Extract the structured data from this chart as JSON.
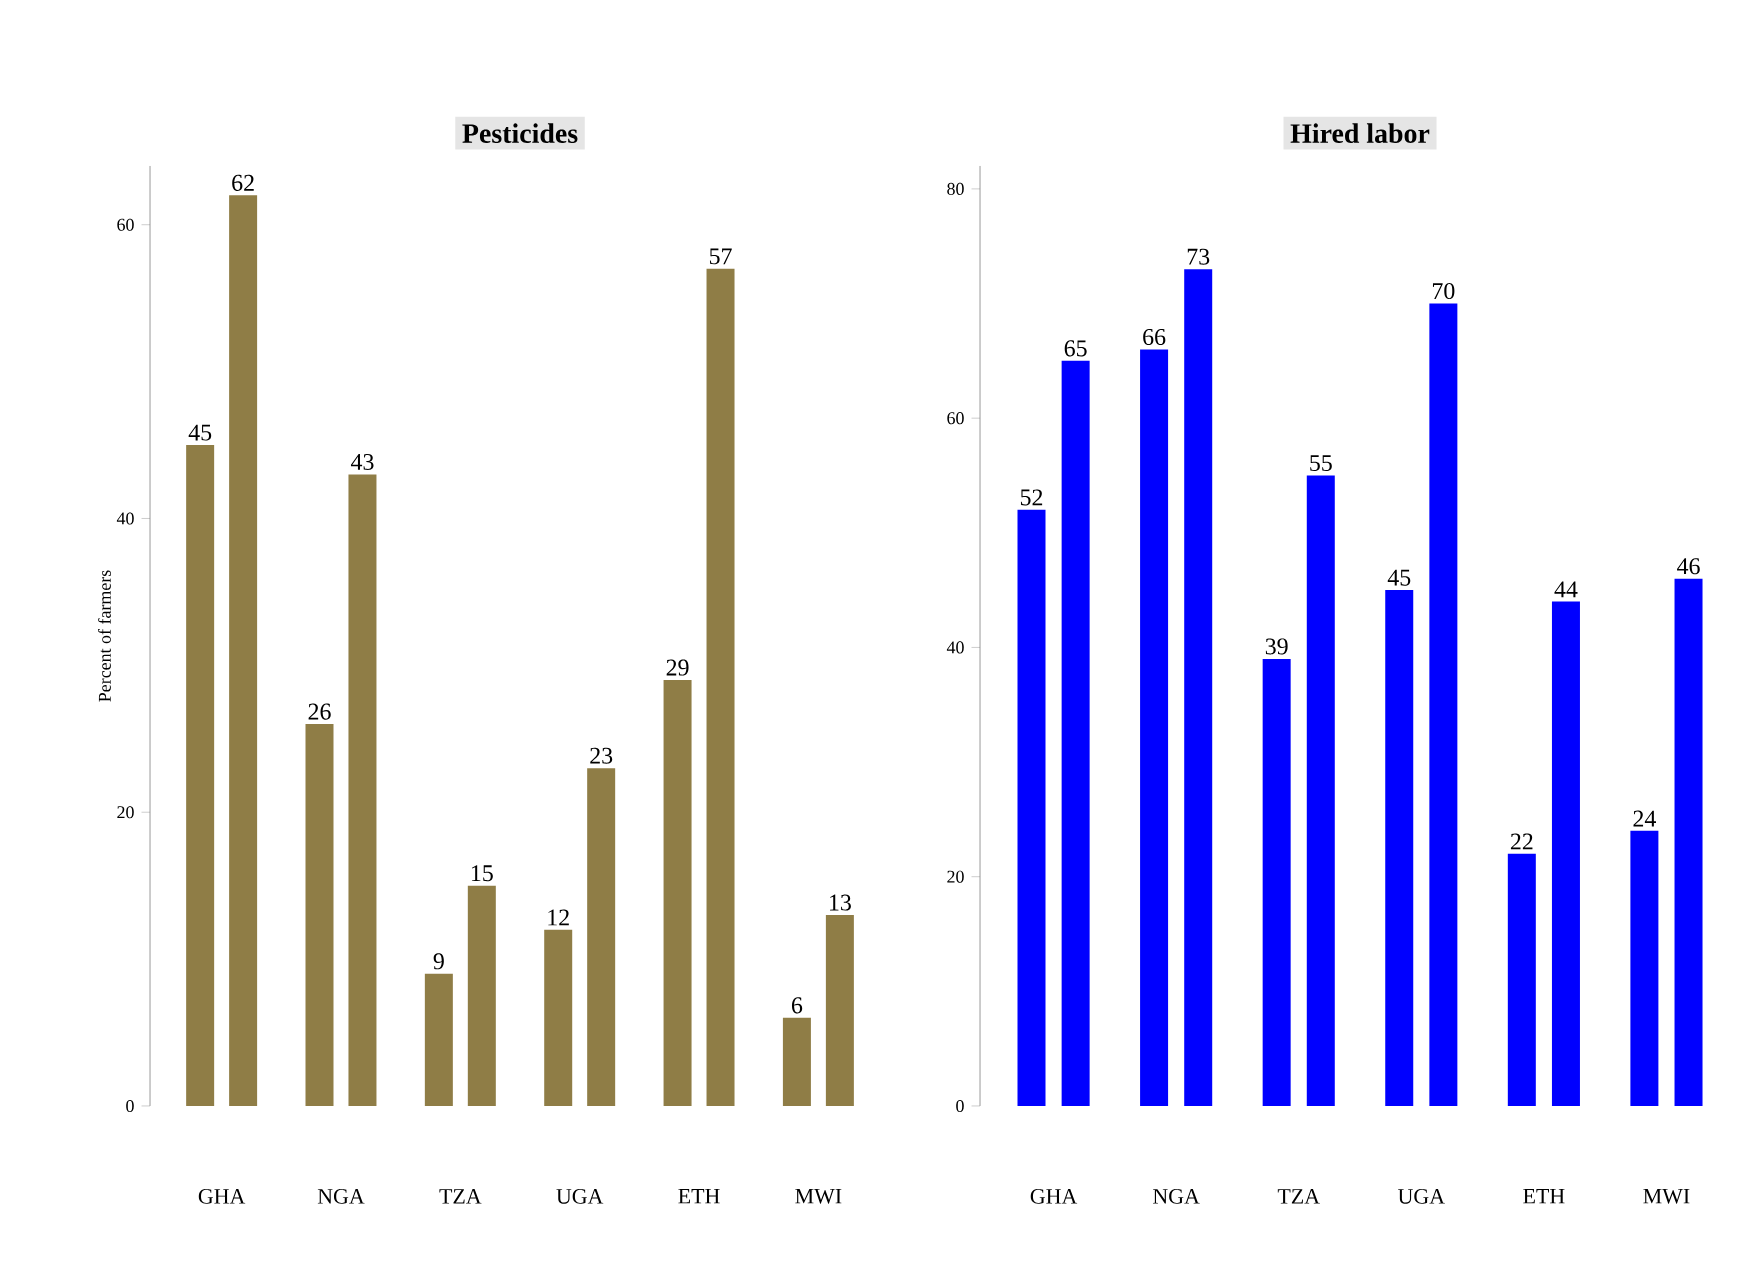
{
  "chart_data": [
    {
      "type": "bar",
      "title": "Pesticides",
      "ylabel": "Percent of farmers",
      "categories": [
        "GHA",
        "NGA",
        "TZA",
        "UGA",
        "ETH",
        "MWI"
      ],
      "series": [
        {
          "color": "#8f7d46",
          "values": [
            45,
            26,
            9,
            12,
            29,
            6
          ]
        },
        {
          "color": "#8f7d46",
          "values": [
            62,
            43,
            15,
            23,
            57,
            13
          ]
        }
      ],
      "ylim": [
        0,
        64
      ],
      "yticks": [
        0,
        20,
        40,
        60
      ],
      "data_labels": true,
      "grid": false
    },
    {
      "type": "bar",
      "title": "Hired labor",
      "categories": [
        "GHA",
        "NGA",
        "TZA",
        "UGA",
        "ETH",
        "MWI"
      ],
      "series": [
        {
          "color": "#0000ff",
          "values": [
            52,
            66,
            39,
            45,
            22,
            24
          ]
        },
        {
          "color": "#0000ff",
          "values": [
            65,
            73,
            55,
            70,
            44,
            46
          ]
        }
      ],
      "ylim": [
        0,
        82
      ],
      "yticks": [
        0,
        20,
        40,
        60,
        80
      ],
      "data_labels": true,
      "grid": false
    }
  ]
}
